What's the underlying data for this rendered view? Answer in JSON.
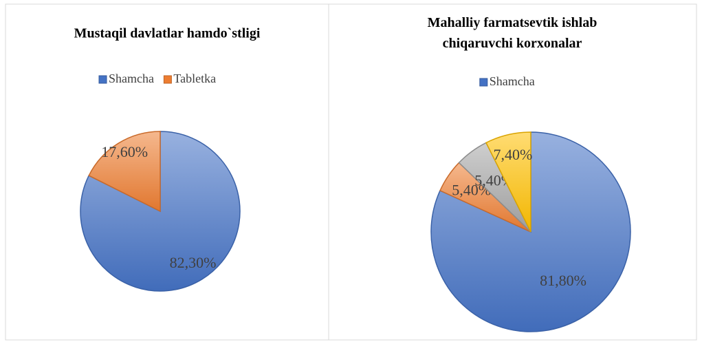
{
  "chart_data": [
    {
      "type": "pie",
      "title": "Mustaqil davlatlar hamdo`stligi",
      "categories": [
        "Shamcha",
        "Tabletka"
      ],
      "values": [
        82.3,
        17.6
      ],
      "value_labels": [
        "82,30%",
        "17,60%"
      ],
      "colors": [
        "#4472c4",
        "#ed7d31"
      ],
      "legend": "top"
    },
    {
      "type": "pie",
      "title": "Mahalliy farmatsevtik  ishlab chiqaruvchi korxonalar",
      "categories": [
        "Shamcha",
        null,
        null,
        null
      ],
      "values": [
        81.8,
        5.4,
        5.4,
        7.4
      ],
      "value_labels": [
        "81,80%",
        "5,40%",
        "5,40%",
        "7,40%"
      ],
      "colors": [
        "#4472c4",
        "#ed7d31",
        "#a5a5a5",
        "#ffc000"
      ],
      "legend": "top"
    }
  ]
}
